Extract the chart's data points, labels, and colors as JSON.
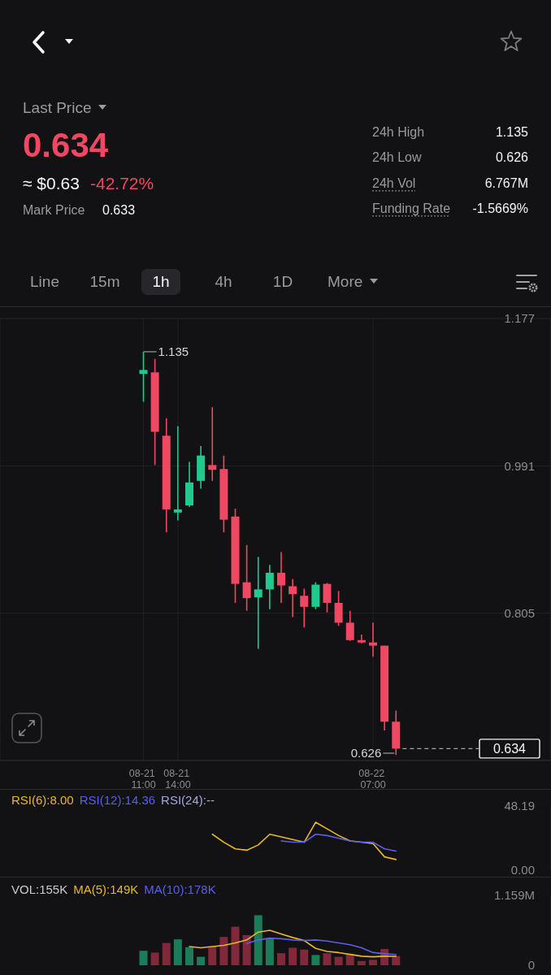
{
  "chart_data": [
    {
      "type": "other",
      "annotations": [
        "Last Price",
        "0.634",
        "≈ $0.63",
        "-42.72%",
        "Mark Price",
        "0.633",
        "24h High",
        "1.135",
        "24h Low",
        "0.626",
        "24h Vol",
        "6.767M",
        "Funding Rate",
        "-1.5669%",
        "Line",
        "15m",
        "1h",
        "4h",
        "1D",
        "More"
      ]
    },
    {
      "type": "candlestick",
      "categories": [
        null,
        null,
        null,
        null,
        null,
        null,
        null,
        null,
        null,
        null,
        null,
        null,
        "08-21 11:00",
        null,
        null,
        "08-21 14:00",
        null,
        null,
        null,
        null,
        null,
        null,
        null,
        null,
        null,
        null,
        null,
        null,
        null,
        null,
        null,
        null,
        "08-22 07:00",
        null,
        null,
        null,
        null,
        null,
        null,
        null,
        null,
        null,
        null,
        null,
        null,
        null,
        null,
        null
      ],
      "ohlc": [
        null,
        null,
        null,
        null,
        null,
        null,
        null,
        null,
        null,
        null,
        null,
        null,
        [
          1.107,
          1.135,
          1.072,
          1.112
        ],
        [
          1.109,
          1.126,
          0.992,
          1.034
        ],
        [
          1.029,
          1.051,
          0.907,
          0.936
        ],
        [
          0.932,
          1.041,
          0.922,
          0.936
        ],
        [
          0.941,
          0.996,
          0.939,
          0.97
        ],
        [
          0.972,
          1.016,
          0.962,
          1.004
        ],
        [
          0.992,
          1.065,
          0.972,
          0.986
        ],
        [
          0.987,
          1.004,
          0.907,
          0.923
        ],
        [
          0.927,
          0.937,
          0.818,
          0.842
        ],
        [
          0.844,
          0.891,
          0.808,
          0.824
        ],
        [
          0.825,
          0.876,
          0.76,
          0.835
        ],
        [
          0.835,
          0.866,
          0.81,
          0.856
        ],
        [
          0.856,
          0.882,
          0.818,
          0.84
        ],
        [
          0.839,
          0.848,
          0.8,
          0.829
        ],
        [
          0.827,
          0.836,
          0.787,
          0.813
        ],
        [
          0.813,
          0.844,
          0.81,
          0.841
        ],
        [
          0.842,
          0.843,
          0.806,
          0.818
        ],
        [
          0.818,
          0.833,
          0.789,
          0.793
        ],
        [
          0.793,
          0.808,
          0.77,
          0.771
        ],
        [
          0.771,
          0.778,
          0.767,
          0.768
        ],
        [
          0.768,
          0.793,
          0.75,
          0.764
        ],
        [
          0.764,
          0.764,
          0.657,
          0.668
        ],
        [
          0.668,
          0.682,
          0.626,
          0.634
        ],
        null,
        null,
        null,
        null,
        null,
        null,
        null,
        null,
        null,
        null,
        null,
        null,
        null
      ],
      "colors": [
        null,
        null,
        null,
        null,
        null,
        null,
        null,
        null,
        null,
        null,
        null,
        null,
        "#22c98e",
        "#f04862",
        "#f04862",
        "#22c98e",
        "#22c98e",
        "#22c98e",
        "#f04862",
        "#f04862",
        "#f04862",
        "#f04862",
        "#22c98e",
        "#22c98e",
        "#f04862",
        "#f04862",
        "#f04862",
        "#22c98e",
        "#f04862",
        "#f04862",
        "#f04862",
        "#f04862",
        "#f04862",
        "#f04862",
        "#f04862",
        null,
        null,
        null,
        null,
        null,
        null,
        null,
        null,
        null,
        null,
        null,
        null,
        null
      ],
      "ylim": [
        0.619,
        1.177
      ],
      "yticks": [
        0.805,
        0.991,
        1.177
      ],
      "grid": true,
      "annotations": [
        {
          "text": "1.135",
          "x": "08-21 11:00",
          "y": 1.135
        },
        "0.626"
      ],
      "ref_lines": [
        {
          "axis": "y",
          "value": 0.634,
          "label": "0.634",
          "line_style": "dashed"
        }
      ]
    },
    {
      "type": "line",
      "categories": [
        null,
        null,
        null,
        null,
        null,
        null,
        null,
        null,
        null,
        null,
        null,
        null,
        null,
        null,
        null,
        null,
        null,
        null,
        null,
        null,
        null,
        null,
        null,
        null,
        null,
        null,
        null,
        null,
        null,
        null,
        null,
        null,
        null,
        null,
        null,
        null,
        null,
        null,
        null,
        null,
        null,
        null,
        null,
        null,
        null,
        null,
        null,
        null
      ],
      "series": [
        {
          "name": "RSI(6):8.00",
          "color": "#e9b824",
          "values": [
            null,
            null,
            null,
            null,
            null,
            null,
            null,
            null,
            null,
            null,
            null,
            null,
            null,
            null,
            null,
            null,
            null,
            null,
            27,
            21,
            16,
            15,
            19,
            27,
            25,
            23,
            21,
            36,
            31,
            26,
            22,
            21,
            20,
            10,
            8,
            null,
            null,
            null,
            null,
            null,
            null,
            null,
            null,
            null,
            null,
            null,
            null,
            null
          ]
        },
        {
          "name": "RSI(12):14.36",
          "color": "#5b5fe8",
          "values": [
            null,
            null,
            null,
            null,
            null,
            null,
            null,
            null,
            null,
            null,
            null,
            null,
            null,
            null,
            null,
            null,
            null,
            null,
            null,
            null,
            null,
            null,
            null,
            null,
            22,
            21,
            21,
            27,
            26,
            24,
            22,
            21,
            21,
            16,
            14.36,
            null,
            null,
            null,
            null,
            null,
            null,
            null,
            null,
            null,
            null,
            null,
            null,
            null
          ]
        },
        {
          "name": "RSI(24):--",
          "color": "#a4a6e2",
          "values": [
            null,
            null,
            null,
            null,
            null,
            null,
            null,
            null,
            null,
            null,
            null,
            null,
            null,
            null,
            null,
            null,
            null,
            null,
            null,
            null,
            null,
            null,
            null,
            null,
            null,
            null,
            null,
            null,
            null,
            null,
            null,
            null,
            null,
            null,
            null,
            null,
            null,
            null,
            null,
            null,
            null,
            null,
            null,
            null,
            null,
            null,
            null,
            null
          ]
        }
      ],
      "ylim": [
        0,
        48.19
      ],
      "yticks": [
        {
          "value": 0,
          "label": "0.00"
        },
        48.19
      ],
      "marker": "none",
      "tick_labels": "y"
    },
    {
      "type": "bar",
      "title": "VOL:155K",
      "categories": [
        null,
        null,
        null,
        null,
        null,
        null,
        null,
        null,
        null,
        null,
        null,
        null,
        null,
        null,
        null,
        null,
        null,
        null,
        null,
        null,
        null,
        null,
        null,
        null,
        null,
        null,
        null,
        null,
        null,
        null,
        null,
        null,
        null,
        null,
        null,
        null,
        null,
        null,
        null,
        null,
        null,
        null,
        null,
        null,
        null,
        null,
        null,
        null
      ],
      "series": [
        {
          "colors": [
            null,
            null,
            null,
            null,
            null,
            null,
            null,
            null,
            null,
            null,
            null,
            null,
            "#1b7c59",
            "#82283b",
            "#82283b",
            "#1b7c59",
            "#1b7c59",
            "#1b7c59",
            "#82283b",
            "#82283b",
            "#82283b",
            "#82283b",
            "#1b7c59",
            "#1b7c59",
            "#82283b",
            "#82283b",
            "#82283b",
            "#1b7c59",
            "#82283b",
            "#82283b",
            "#82283b",
            "#82283b",
            "#82283b",
            "#82283b",
            "#82283b",
            null,
            null,
            null,
            null,
            null,
            null,
            null,
            null,
            null,
            null,
            null,
            null,
            null
          ],
          "values": [
            null,
            null,
            null,
            null,
            null,
            null,
            null,
            null,
            null,
            null,
            null,
            null,
            240000,
            210000,
            370000,
            430000,
            300000,
            140000,
            310000,
            470000,
            640000,
            500000,
            830000,
            450000,
            200000,
            290000,
            260000,
            170000,
            200000,
            140000,
            180000,
            70000,
            90000,
            270000,
            155000,
            null,
            null,
            null,
            null,
            null,
            null,
            null,
            null,
            null,
            null,
            null,
            null,
            null
          ]
        },
        {
          "name": "MA(5):149K",
          "type": "line",
          "color": "#e9b824",
          "values": [
            null,
            null,
            null,
            null,
            null,
            null,
            null,
            null,
            null,
            null,
            null,
            null,
            null,
            null,
            null,
            null,
            310000,
            290000,
            310000,
            330000,
            370000,
            420000,
            550000,
            580000,
            520000,
            460000,
            410000,
            280000,
            230000,
            210000,
            180000,
            150000,
            140000,
            150000,
            149000,
            null,
            null,
            null,
            null,
            null,
            null,
            null,
            null,
            null,
            null,
            null,
            null,
            null
          ]
        },
        {
          "name": "MA(10):178K",
          "type": "line",
          "color": "#5b5fe8",
          "values": [
            null,
            null,
            null,
            null,
            null,
            null,
            null,
            null,
            null,
            null,
            null,
            null,
            null,
            null,
            null,
            null,
            null,
            null,
            null,
            null,
            null,
            360000,
            420000,
            450000,
            440000,
            420000,
            410000,
            420000,
            400000,
            370000,
            340000,
            290000,
            210000,
            190000,
            178000,
            null,
            null,
            null,
            null,
            null,
            null,
            null,
            null,
            null,
            null,
            null,
            null,
            null
          ]
        }
      ],
      "ylim": [
        0,
        1159000
      ],
      "yticks": [
        0,
        {
          "value": 1159000,
          "label": "1.159M"
        }
      ],
      "marker": "none",
      "tick_labels": "y"
    }
  ]
}
